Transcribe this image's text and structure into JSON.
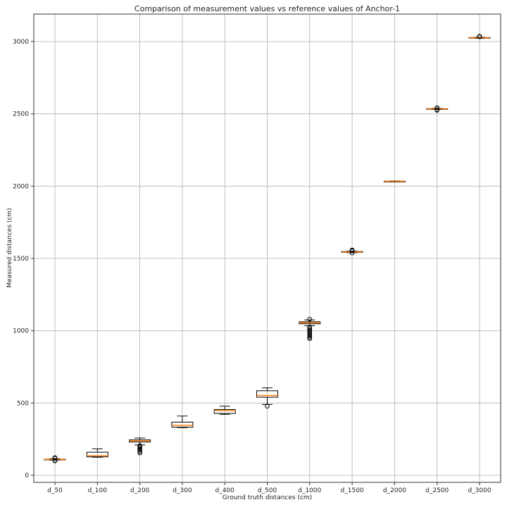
{
  "chart_data": {
    "type": "box",
    "title": "Comparison of measurement values vs reference values of Anchor-1",
    "xlabel": "Ground truth distances (cm)",
    "ylabel": "Measured distances (cm)",
    "ylim": [
      -50,
      3200
    ],
    "yticks": [
      0,
      500,
      1000,
      1500,
      2000,
      2500,
      3000
    ],
    "grid": true,
    "legend": null,
    "categories": [
      "d_50",
      "d_100",
      "d_200",
      "d_300",
      "d_400",
      "d_500",
      "d_1000",
      "d_1500",
      "d_2000",
      "d_2500",
      "d_3000"
    ],
    "boxes": [
      {
        "label": "d_50",
        "whisker_low": 105,
        "q1": 107,
        "median": 110,
        "q3": 112,
        "whisker_high": 115,
        "fliers": [
          100,
          103,
          118,
          122
        ]
      },
      {
        "label": "d_100",
        "whisker_low": 125,
        "q1": 128,
        "median": 135,
        "q3": 160,
        "whisker_high": 183,
        "fliers": []
      },
      {
        "label": "d_200",
        "whisker_low": 210,
        "q1": 230,
        "median": 238,
        "q3": 245,
        "whisker_high": 258,
        "fliers": [
          155,
          165,
          175,
          185,
          195,
          200,
          205
        ]
      },
      {
        "label": "d_300",
        "whisker_low": 330,
        "q1": 333,
        "median": 345,
        "q3": 368,
        "whisker_high": 410,
        "fliers": []
      },
      {
        "label": "d_400",
        "whisker_low": 422,
        "q1": 428,
        "median": 448,
        "q3": 455,
        "whisker_high": 478,
        "fliers": []
      },
      {
        "label": "d_500",
        "whisker_low": 490,
        "q1": 540,
        "median": 552,
        "q3": 585,
        "whisker_high": 605,
        "fliers": [
          478
        ]
      },
      {
        "label": "d_1000",
        "whisker_low": 1035,
        "q1": 1048,
        "median": 1055,
        "q3": 1062,
        "whisker_high": 1075,
        "fliers": [
          945,
          955,
          965,
          975,
          985,
          995,
          1005,
          1015,
          1025,
          1080
        ]
      },
      {
        "label": "d_1500",
        "whisker_low": 1540,
        "q1": 1542,
        "median": 1545,
        "q3": 1548,
        "whisker_high": 1550,
        "fliers": [
          1538,
          1552,
          1556,
          1558
        ]
      },
      {
        "label": "d_2000",
        "whisker_low": 2030,
        "q1": 2031,
        "median": 2033,
        "q3": 2034,
        "whisker_high": 2036,
        "fliers": []
      },
      {
        "label": "d_2500",
        "whisker_low": 2530,
        "q1": 2532,
        "median": 2534,
        "q3": 2536,
        "whisker_high": 2538,
        "fliers": [
          2525,
          2528,
          2540,
          2542
        ]
      },
      {
        "label": "d_3000",
        "whisker_low": 3022,
        "q1": 3024,
        "median": 3026,
        "q3": 3028,
        "whisker_high": 3030,
        "fliers": [
          3033,
          3036
        ]
      }
    ],
    "colors": {
      "box": "#000000",
      "median": "#ff7f0e",
      "grid": "#b0b0b0"
    }
  }
}
